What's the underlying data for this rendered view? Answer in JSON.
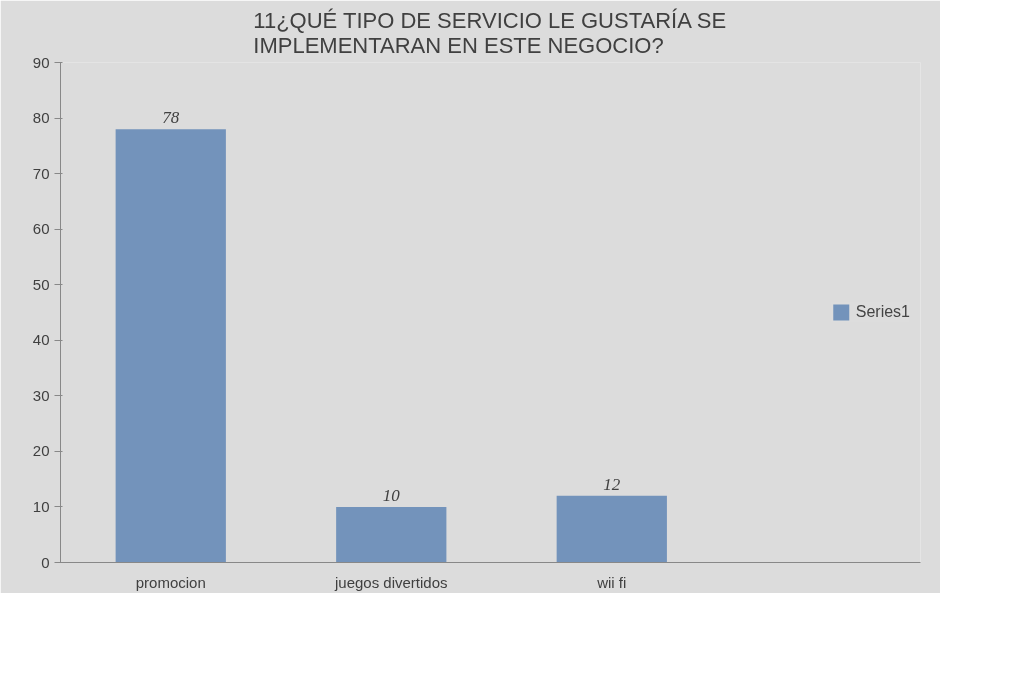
{
  "chart_data": {
    "type": "bar",
    "title": "11¿QUÉ TIPO DE SERVICIO LE GUSTARÍA SE\nIMPLEMENTARAN EN  ESTE NEGOCIO?",
    "categories": [
      "promocion",
      "juegos divertidos",
      "wii fi"
    ],
    "series": [
      {
        "name": "Series1",
        "color": "#7393bb",
        "values": [
          78,
          10,
          12
        ]
      }
    ],
    "ylim": [
      0,
      90
    ],
    "yticks": [
      0,
      10,
      20,
      30,
      40,
      50,
      60,
      70,
      80,
      90
    ],
    "data_labels": true,
    "grid": false,
    "legend": "right"
  }
}
